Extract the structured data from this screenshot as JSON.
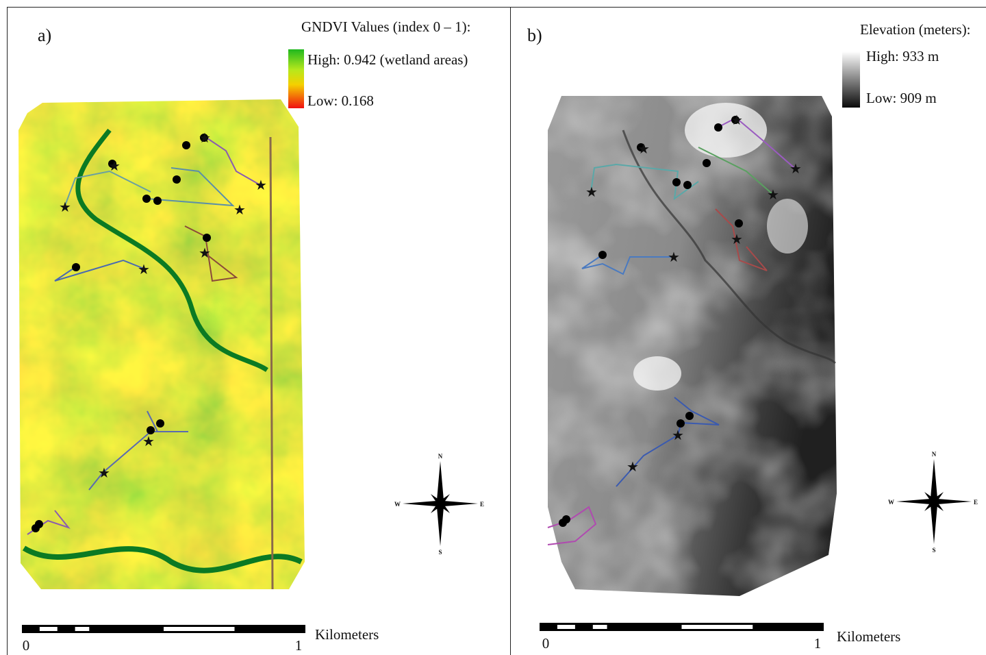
{
  "panels": [
    {
      "label": "a)",
      "legend_title": "GNDVI Values  (index  0 – 1):",
      "high": "High:  0.942 (wetland  areas)",
      "low": "Low:  0.168",
      "scale_start": "0",
      "scale_end": "1",
      "scale_unit": "Kilometers",
      "compass": {
        "n": "N",
        "e": "E",
        "s": "S",
        "w": "W"
      }
    },
    {
      "label": "b)",
      "legend_title": "Elevation  (meters):",
      "high": "High:  933 m",
      "low": "Low:  909 m",
      "scale_start": "0",
      "scale_end": "1",
      "scale_unit": "Kilometers",
      "compass": {
        "n": "N",
        "e": "E",
        "s": "S",
        "w": "W"
      }
    }
  ]
}
